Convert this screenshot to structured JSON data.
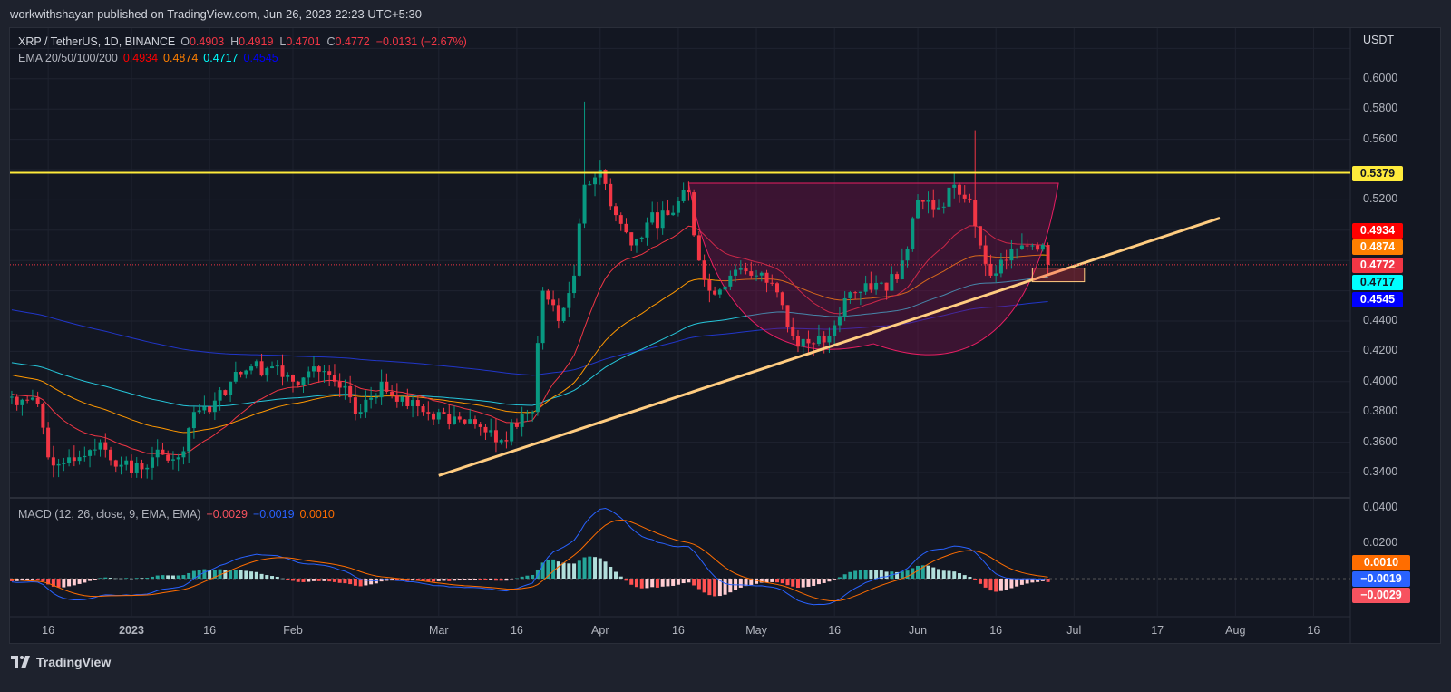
{
  "header": {
    "published": "workwithshayan published on TradingView.com, Jun 26, 2023 22:23 UTC+5:30"
  },
  "legend": {
    "symbol": "XRP / TetherUS, 1D, BINANCE",
    "o_label": "O",
    "o": "0.4903",
    "h_label": "H",
    "h": "0.4919",
    "l_label": "L",
    "l": "0.4701",
    "c_label": "C",
    "c": "0.4772",
    "change": "−0.0131 (−2.67%)",
    "ema_label": "EMA 20/50/100/200",
    "ema20": "0.4934",
    "ema50": "0.4874",
    "ema100": "0.4717",
    "ema200": "0.4545",
    "macd_label": "MACD (12, 26, close, 9, EMA, EMA)",
    "macd_hist": "−0.0029",
    "macd_line": "−0.0019",
    "macd_signal": "0.0010"
  },
  "axis": {
    "currency": "USDT",
    "price_ticks": [
      "0.6000",
      "0.5800",
      "0.5600",
      "0.5200",
      "0.4400",
      "0.4200",
      "0.4000",
      "0.3800",
      "0.3600",
      "0.3400"
    ],
    "macd_ticks": [
      "0.0400",
      "0.0200"
    ],
    "time_ticks": [
      {
        "label": "16",
        "date": "2022-12-16"
      },
      {
        "label": "2023",
        "date": "2023-01-01"
      },
      {
        "label": "16",
        "date": "2023-01-16"
      },
      {
        "label": "Feb",
        "date": "2023-02-01"
      },
      {
        "label": "Mar",
        "date": "2023-03-01"
      },
      {
        "label": "16",
        "date": "2023-03-16"
      },
      {
        "label": "Apr",
        "date": "2023-04-01"
      },
      {
        "label": "16",
        "date": "2023-04-16"
      },
      {
        "label": "May",
        "date": "2023-05-01"
      },
      {
        "label": "16",
        "date": "2023-05-16"
      },
      {
        "label": "Jun",
        "date": "2023-06-01"
      },
      {
        "label": "16",
        "date": "2023-06-16"
      },
      {
        "label": "Jul",
        "date": "2023-07-01"
      },
      {
        "label": "17",
        "date": "2023-07-17"
      },
      {
        "label": "Aug",
        "date": "2023-08-01"
      },
      {
        "label": "16",
        "date": "2023-08-16"
      }
    ]
  },
  "price_labels": [
    {
      "value": "0.5379",
      "bg": "#ffeb3b",
      "fg": "#131722"
    },
    {
      "value": "0.4934",
      "bg": "#ff0000",
      "fg": "#ffffff"
    },
    {
      "value": "0.4874",
      "bg": "#ff7f00",
      "fg": "#ffffff"
    },
    {
      "value": "0.4772",
      "bg": "#f23645",
      "fg": "#ffffff"
    },
    {
      "value": "0.4717",
      "bg": "#00ffff",
      "fg": "#131722"
    },
    {
      "value": "0.4545",
      "bg": "#0000ff",
      "fg": "#ffffff"
    }
  ],
  "macd_labels": [
    {
      "value": "0.0010",
      "bg": "#ff6d00",
      "fg": "#ffffff"
    },
    {
      "value": "−0.0019",
      "bg": "#2962ff",
      "fg": "#ffffff"
    },
    {
      "value": "−0.0029",
      "bg": "#f7525f",
      "fg": "#ffffff"
    }
  ],
  "colors": {
    "up": "#089981",
    "down": "#f23645",
    "ema20": "#f23645",
    "ema50": "#ff9800",
    "ema100": "#26c6da",
    "ema200": "#2136c9",
    "macd": "#2962ff",
    "signal": "#ff6d00",
    "hline": "#ffeb3b",
    "trendline": "#ffcc80",
    "cup": "#880e4f"
  },
  "brand": "TradingView",
  "chart_data": {
    "type": "candlestick",
    "symbol": "XRP / TetherUS",
    "interval": "1D",
    "exchange": "BINANCE",
    "ylim": [
      0.33,
      0.62
    ],
    "xlim": [
      "2022-12-09",
      "2023-08-22"
    ],
    "close_path": [
      [
        "2022-12-09",
        0.39
      ],
      [
        "2022-12-14",
        0.385
      ],
      [
        "2022-12-16",
        0.35
      ],
      [
        "2022-12-20",
        0.35
      ],
      [
        "2022-12-26",
        0.36
      ],
      [
        "2022-12-30",
        0.345
      ],
      [
        "2023-01-01",
        0.34
      ],
      [
        "2023-01-05",
        0.35
      ],
      [
        "2023-01-10",
        0.35
      ],
      [
        "2023-01-13",
        0.38
      ],
      [
        "2023-01-16",
        0.38
      ],
      [
        "2023-01-20",
        0.4
      ],
      [
        "2023-01-24",
        0.41
      ],
      [
        "2023-01-28",
        0.41
      ],
      [
        "2023-02-01",
        0.4
      ],
      [
        "2023-02-05",
        0.41
      ],
      [
        "2023-02-09",
        0.4
      ],
      [
        "2023-02-14",
        0.38
      ],
      [
        "2023-02-18",
        0.4
      ],
      [
        "2023-02-22",
        0.39
      ],
      [
        "2023-02-26",
        0.38
      ],
      [
        "2023-03-01",
        0.38
      ],
      [
        "2023-03-05",
        0.375
      ],
      [
        "2023-03-09",
        0.37
      ],
      [
        "2023-03-12",
        0.36
      ],
      [
        "2023-03-16",
        0.37
      ],
      [
        "2023-03-19",
        0.38
      ],
      [
        "2023-03-21",
        0.46
      ],
      [
        "2023-03-24",
        0.44
      ],
      [
        "2023-03-27",
        0.47
      ],
      [
        "2023-03-29",
        0.53
      ],
      [
        "2023-04-01",
        0.54
      ],
      [
        "2023-04-04",
        0.51
      ],
      [
        "2023-04-07",
        0.49
      ],
      [
        "2023-04-10",
        0.505
      ],
      [
        "2023-04-14",
        0.51
      ],
      [
        "2023-04-18",
        0.525
      ],
      [
        "2023-04-20",
        0.48
      ],
      [
        "2023-04-22",
        0.46
      ],
      [
        "2023-04-26",
        0.47
      ],
      [
        "2023-04-30",
        0.47
      ],
      [
        "2023-05-04",
        0.465
      ],
      [
        "2023-05-08",
        0.43
      ],
      [
        "2023-05-12",
        0.425
      ],
      [
        "2023-05-15",
        0.43
      ],
      [
        "2023-05-18",
        0.455
      ],
      [
        "2023-05-22",
        0.465
      ],
      [
        "2023-05-26",
        0.46
      ],
      [
        "2023-05-29",
        0.48
      ],
      [
        "2023-06-01",
        0.52
      ],
      [
        "2023-06-05",
        0.515
      ],
      [
        "2023-06-08",
        0.53
      ],
      [
        "2023-06-11",
        0.52
      ],
      [
        "2023-06-13",
        0.49
      ],
      [
        "2023-06-15",
        0.47
      ],
      [
        "2023-06-18",
        0.48
      ],
      [
        "2023-06-21",
        0.49
      ],
      [
        "2023-06-23",
        0.49
      ],
      [
        "2023-06-25",
        0.4903
      ],
      [
        "2023-06-26",
        0.4772
      ]
    ],
    "last_bar": {
      "date": "2023-06-26",
      "open": 0.4903,
      "high": 0.4919,
      "low": 0.4701,
      "close": 0.4772
    },
    "indicators": {
      "ema": [
        20,
        50,
        100,
        200
      ],
      "macd": {
        "fast": 12,
        "slow": 26,
        "signal": 9
      }
    },
    "drawings": {
      "horizontal_line": 0.5379,
      "trendline": [
        [
          "2023-03-01",
          0.338
        ],
        [
          "2023-07-29",
          0.508
        ]
      ],
      "cup_arc": {
        "from": "2023-04-18",
        "to": "2023-06-28",
        "top": 0.531,
        "bottom": 0.425
      },
      "box": {
        "from": "2023-06-23",
        "to": "2023-07-03",
        "top": 0.475,
        "bottom": 0.466
      }
    }
  }
}
